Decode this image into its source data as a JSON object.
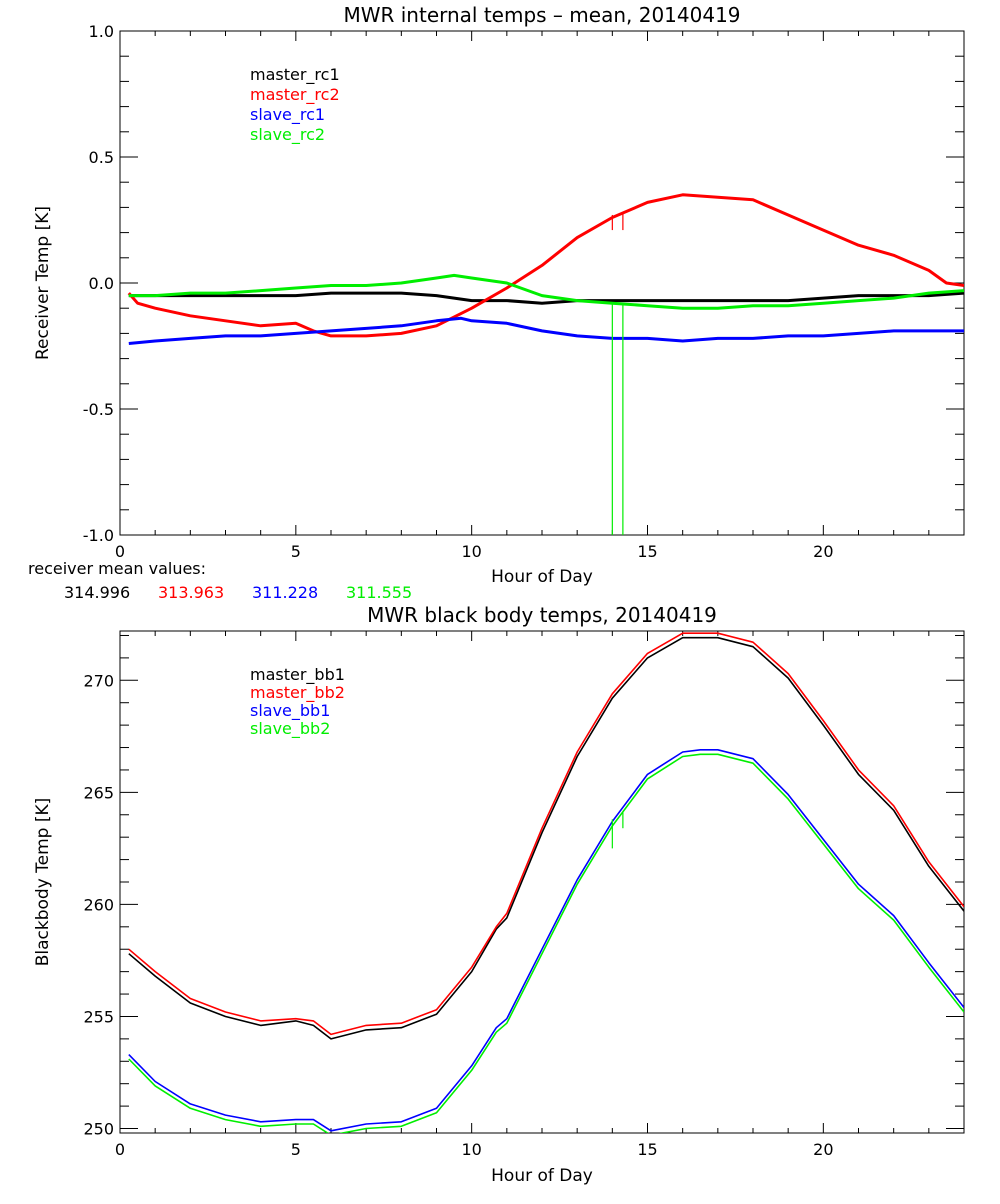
{
  "receiver_mean": {
    "label": "receiver mean values:",
    "values": [
      {
        "text": "314.996",
        "color": "#000000"
      },
      {
        "text": "313.963",
        "color": "#ff0000"
      },
      {
        "text": "311.228",
        "color": "#0000ff"
      },
      {
        "text": "311.555",
        "color": "#00ee00"
      }
    ]
  },
  "chart_data": [
    {
      "type": "line",
      "title": "MWR internal temps – mean, 20140419",
      "xlabel": "Hour of Day",
      "ylabel": "Receiver Temp [K]",
      "xlim": [
        0,
        24
      ],
      "ylim": [
        -1.0,
        1.0
      ],
      "xticks": [
        0,
        5,
        10,
        15,
        20
      ],
      "xtick_labels": [
        "0",
        "5",
        "10",
        "15",
        "20"
      ],
      "yticks": [
        -1.0,
        -0.5,
        0.0,
        0.5,
        1.0
      ],
      "ytick_labels": [
        "-1.0",
        "-0.5",
        "0.0",
        "0.5",
        "1.0"
      ],
      "grid": false,
      "legend_position": "top-left",
      "series": [
        {
          "name": "master_rc1",
          "color": "#000000",
          "x": [
            0.25,
            1,
            2,
            3,
            4,
            5,
            6,
            7,
            8,
            9,
            10,
            11,
            12,
            13,
            14,
            15,
            16,
            17,
            18,
            19,
            20,
            21,
            22,
            23,
            24
          ],
          "y": [
            -0.05,
            -0.05,
            -0.05,
            -0.05,
            -0.05,
            -0.05,
            -0.04,
            -0.04,
            -0.04,
            -0.05,
            -0.07,
            -0.07,
            -0.08,
            -0.07,
            -0.07,
            -0.07,
            -0.07,
            -0.07,
            -0.07,
            -0.07,
            -0.06,
            -0.05,
            -0.05,
            -0.05,
            -0.04
          ]
        },
        {
          "name": "master_rc2",
          "color": "#ff0000",
          "x": [
            0.25,
            0.5,
            1,
            2,
            3,
            4,
            5,
            5.5,
            6,
            7,
            8,
            9,
            10,
            11,
            12,
            13,
            14,
            15,
            16,
            17,
            18,
            19,
            20,
            21,
            22,
            23,
            23.5,
            24
          ],
          "y": [
            -0.04,
            -0.08,
            -0.1,
            -0.13,
            -0.15,
            -0.17,
            -0.16,
            -0.19,
            -0.21,
            -0.21,
            -0.2,
            -0.17,
            -0.1,
            -0.02,
            0.07,
            0.18,
            0.26,
            0.32,
            0.35,
            0.34,
            0.33,
            0.27,
            0.21,
            0.15,
            0.11,
            0.05,
            0.0,
            -0.01
          ]
        },
        {
          "name": "slave_rc1",
          "color": "#0000ff",
          "x": [
            0.25,
            1,
            2,
            3,
            4,
            5,
            6,
            7,
            8,
            9,
            9.7,
            10,
            11,
            12,
            13,
            14,
            15,
            16,
            17,
            18,
            19,
            20,
            21,
            22,
            23,
            24
          ],
          "y": [
            -0.24,
            -0.23,
            -0.22,
            -0.21,
            -0.21,
            -0.2,
            -0.19,
            -0.18,
            -0.17,
            -0.15,
            -0.14,
            -0.15,
            -0.16,
            -0.19,
            -0.21,
            -0.22,
            -0.22,
            -0.23,
            -0.22,
            -0.22,
            -0.21,
            -0.21,
            -0.2,
            -0.19,
            -0.19,
            -0.19
          ]
        },
        {
          "name": "slave_rc2",
          "color": "#00ee00",
          "x": [
            0.25,
            1,
            2,
            3,
            4,
            5,
            6,
            7,
            8,
            9,
            9.5,
            10,
            11,
            12,
            13,
            14,
            15,
            16,
            17,
            18,
            19,
            20,
            21,
            22,
            23,
            24
          ],
          "y": [
            -0.05,
            -0.05,
            -0.04,
            -0.04,
            -0.03,
            -0.02,
            -0.01,
            -0.01,
            0.0,
            0.02,
            0.03,
            0.02,
            0.0,
            -0.05,
            -0.07,
            -0.08,
            -0.09,
            -0.1,
            -0.1,
            -0.09,
            -0.09,
            -0.08,
            -0.07,
            -0.06,
            -0.04,
            -0.03
          ]
        }
      ],
      "spikes": [
        {
          "color": "#00ee00",
          "x": 14.0,
          "y_from": -0.08,
          "y_to": -1.0
        },
        {
          "color": "#00ee00",
          "x": 14.3,
          "y_from": -0.08,
          "y_to": -1.0
        },
        {
          "color": "#ff0000",
          "x": 14.0,
          "y_from": 0.27,
          "y_to": 0.21
        },
        {
          "color": "#ff0000",
          "x": 14.3,
          "y_from": 0.28,
          "y_to": 0.21
        }
      ]
    },
    {
      "type": "line",
      "title": "MWR black body temps, 20140419",
      "xlabel": "Hour of Day",
      "ylabel": "Blackbody Temp [K]",
      "xlim": [
        0,
        24
      ],
      "ylim": [
        249.8,
        272.2
      ],
      "xticks": [
        0,
        5,
        10,
        15,
        20
      ],
      "xtick_labels": [
        "0",
        "5",
        "10",
        "15",
        "20"
      ],
      "yticks": [
        250,
        255,
        260,
        265,
        270
      ],
      "ytick_labels": [
        "250",
        "255",
        "260",
        "265",
        "270"
      ],
      "grid": false,
      "legend_position": "top-left",
      "series": [
        {
          "name": "master_bb1",
          "color": "#000000",
          "x": [
            0.25,
            1,
            2,
            3,
            4,
            5,
            5.5,
            6,
            7,
            8,
            9,
            10,
            10.7,
            11,
            12,
            13,
            14,
            15,
            16,
            16.5,
            17,
            18,
            19,
            20,
            21,
            22,
            23,
            24
          ],
          "y": [
            257.8,
            256.8,
            255.6,
            255.0,
            254.6,
            254.8,
            254.6,
            254.0,
            254.4,
            254.5,
            255.1,
            257.0,
            258.9,
            259.4,
            263.2,
            266.6,
            269.2,
            271.0,
            271.9,
            271.9,
            271.9,
            271.5,
            270.1,
            268.0,
            265.8,
            264.2,
            261.7,
            259.7
          ]
        },
        {
          "name": "master_bb2",
          "color": "#ff0000",
          "x": [
            0.25,
            1,
            2,
            3,
            4,
            5,
            5.5,
            6,
            7,
            8,
            9,
            10,
            10.7,
            11,
            12,
            13,
            14,
            15,
            16,
            16.5,
            17,
            18,
            19,
            20,
            21,
            22,
            23,
            24
          ],
          "y": [
            258.0,
            257.0,
            255.8,
            255.2,
            254.8,
            254.9,
            254.8,
            254.2,
            254.6,
            254.7,
            255.3,
            257.2,
            259.0,
            259.6,
            263.4,
            266.8,
            269.4,
            271.2,
            272.1,
            272.1,
            272.1,
            271.7,
            270.3,
            268.2,
            266.0,
            264.4,
            261.9,
            259.9
          ]
        },
        {
          "name": "slave_bb1",
          "color": "#0000ff",
          "x": [
            0.25,
            1,
            2,
            3,
            4,
            5,
            5.5,
            6,
            7,
            8,
            9,
            10,
            10.7,
            11,
            12,
            13,
            14,
            15,
            16,
            16.5,
            17,
            18,
            19,
            20,
            21,
            22,
            23,
            24
          ],
          "y": [
            253.3,
            252.1,
            251.1,
            250.6,
            250.3,
            250.4,
            250.4,
            249.9,
            250.2,
            250.3,
            250.9,
            252.8,
            254.5,
            254.9,
            258.0,
            261.1,
            263.7,
            265.8,
            266.8,
            266.9,
            266.9,
            266.5,
            264.9,
            262.9,
            260.9,
            259.5,
            257.4,
            255.4
          ]
        },
        {
          "name": "slave_bb2",
          "color": "#00ee00",
          "x": [
            0.25,
            1,
            2,
            3,
            4,
            5,
            5.5,
            6,
            7,
            8,
            9,
            10,
            10.7,
            11,
            12,
            13,
            14,
            15,
            16,
            16.5,
            17,
            18,
            19,
            20,
            21,
            22,
            23,
            24
          ],
          "y": [
            253.1,
            251.9,
            250.9,
            250.4,
            250.1,
            250.2,
            250.2,
            249.7,
            250.0,
            250.1,
            250.7,
            252.6,
            254.3,
            254.7,
            257.8,
            260.9,
            263.5,
            265.6,
            266.6,
            266.7,
            266.7,
            266.3,
            264.7,
            262.7,
            260.7,
            259.3,
            257.2,
            255.2
          ]
        }
      ],
      "spikes": [
        {
          "color": "#00ee00",
          "x": 14.0,
          "y_from": 263.8,
          "y_to": 262.5
        },
        {
          "color": "#00ee00",
          "x": 14.3,
          "y_from": 264.1,
          "y_to": 263.4
        }
      ]
    }
  ]
}
